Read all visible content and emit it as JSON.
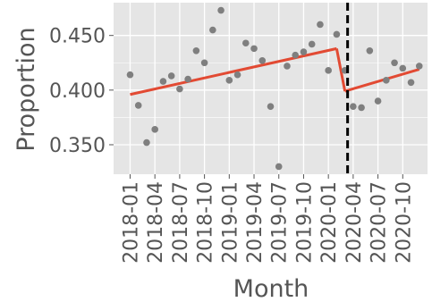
{
  "chart_data": {
    "type": "scatter",
    "xlabel": "Month",
    "ylabel": "Proportion",
    "x_tick_labels": [
      "2018-01",
      "2018-04",
      "2018-07",
      "2018-10",
      "2019-01",
      "2019-04",
      "2019-07",
      "2019-10",
      "2020-01",
      "2020-04",
      "2020-07",
      "2020-10"
    ],
    "y_tick_labels": [
      "0.350",
      "0.400",
      "0.450"
    ],
    "y_ticks": [
      0.35,
      0.4,
      0.45
    ],
    "ylim": [
      0.323,
      0.48
    ],
    "xlim_months": [
      "2017-11",
      "2021-01"
    ],
    "grid": true,
    "background": "#e5e5e5",
    "grid_color": "#ffffff",
    "point_color": "#7f7f7f",
    "line_color": "#e24a33",
    "intervention_line_color": "#000000",
    "intervention_month": "2020-03",
    "points": [
      {
        "x": "2018-01",
        "y": 0.414
      },
      {
        "x": "2018-02",
        "y": 0.386
      },
      {
        "x": "2018-03",
        "y": 0.352
      },
      {
        "x": "2018-04",
        "y": 0.364
      },
      {
        "x": "2018-05",
        "y": 0.408
      },
      {
        "x": "2018-06",
        "y": 0.413
      },
      {
        "x": "2018-07",
        "y": 0.401
      },
      {
        "x": "2018-08",
        "y": 0.41
      },
      {
        "x": "2018-09",
        "y": 0.436
      },
      {
        "x": "2018-10",
        "y": 0.425
      },
      {
        "x": "2018-11",
        "y": 0.455
      },
      {
        "x": "2018-12",
        "y": 0.473
      },
      {
        "x": "2019-01",
        "y": 0.409
      },
      {
        "x": "2019-02",
        "y": 0.414
      },
      {
        "x": "2019-03",
        "y": 0.443
      },
      {
        "x": "2019-04",
        "y": 0.438
      },
      {
        "x": "2019-05",
        "y": 0.427
      },
      {
        "x": "2019-06",
        "y": 0.385
      },
      {
        "x": "2019-07",
        "y": 0.33
      },
      {
        "x": "2019-08",
        "y": 0.422
      },
      {
        "x": "2019-09",
        "y": 0.432
      },
      {
        "x": "2019-10",
        "y": 0.435
      },
      {
        "x": "2019-11",
        "y": 0.442
      },
      {
        "x": "2019-12",
        "y": 0.46
      },
      {
        "x": "2020-01",
        "y": 0.418
      },
      {
        "x": "2020-02",
        "y": 0.451
      },
      {
        "x": "2020-03",
        "y": 0.418
      },
      {
        "x": "2020-04",
        "y": 0.385
      },
      {
        "x": "2020-05",
        "y": 0.384
      },
      {
        "x": "2020-06",
        "y": 0.436
      },
      {
        "x": "2020-07",
        "y": 0.39
      },
      {
        "x": "2020-08",
        "y": 0.409
      },
      {
        "x": "2020-09",
        "y": 0.425
      },
      {
        "x": "2020-10",
        "y": 0.42
      },
      {
        "x": "2020-11",
        "y": 0.407
      },
      {
        "x": "2020-12",
        "y": 0.422
      }
    ],
    "trend_segments": [
      {
        "x": [
          "2018-01",
          "2020-02"
        ],
        "y": [
          0.396,
          0.438
        ]
      },
      {
        "x": [
          "2020-03",
          "2020-12"
        ],
        "y": [
          0.399,
          0.419
        ]
      }
    ]
  }
}
